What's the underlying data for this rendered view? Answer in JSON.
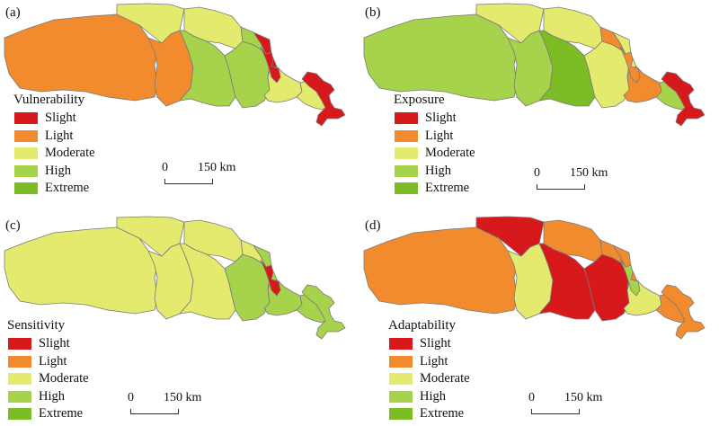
{
  "legend_items": [
    {
      "label": "Slight",
      "color": "#d7191c"
    },
    {
      "label": "Light",
      "color": "#f28a2e"
    },
    {
      "label": "Moderate",
      "color": "#e4ea6e"
    },
    {
      "label": "High",
      "color": "#a6d24c"
    },
    {
      "label": "Extreme",
      "color": "#7cbd26"
    }
  ],
  "scale": {
    "zero": "0",
    "end": "150 km"
  },
  "panels": [
    {
      "id": "a",
      "label": "(a)",
      "title": "Vulnerability",
      "regions": [
        "Light",
        "Moderate",
        "Moderate",
        "Light",
        "High",
        "High",
        "High",
        "Slight",
        "Moderate",
        "Slight",
        "Moderate",
        "Slight"
      ]
    },
    {
      "id": "b",
      "label": "(b)",
      "title": "Exposure",
      "regions": [
        "High",
        "Moderate",
        "Moderate",
        "High",
        "Extreme",
        "Moderate",
        "Light",
        "Moderate",
        "Light",
        "Light",
        "High",
        "Slight"
      ]
    },
    {
      "id": "c",
      "label": "(c)",
      "title": "Sensitivity",
      "regions": [
        "Moderate",
        "Moderate",
        "Moderate",
        "Moderate",
        "Moderate",
        "High",
        "Moderate",
        "High",
        "High",
        "Slight",
        "High",
        "High"
      ]
    },
    {
      "id": "d",
      "label": "(d)",
      "title": "Adaptability",
      "regions": [
        "Light",
        "Slight",
        "Light",
        "Moderate",
        "Slight",
        "Slight",
        "Light",
        "Light",
        "Moderate",
        "High",
        "Light",
        "Light"
      ]
    }
  ]
}
